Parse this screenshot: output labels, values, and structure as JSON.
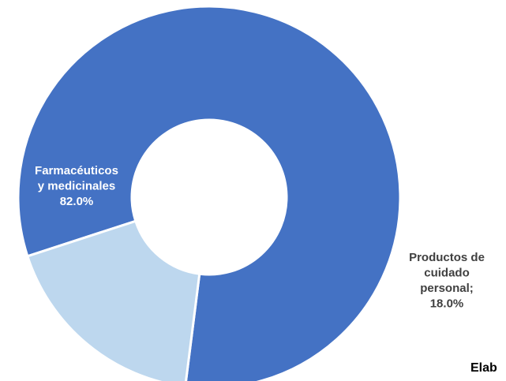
{
  "chart_data": {
    "type": "pie",
    "variant": "donut",
    "slices": [
      {
        "label_lines": [
          "Farmacéuticos",
          "y medicinales",
          "82.0%"
        ],
        "value": 82.0,
        "color": "#4472C4",
        "label_color": "#ffffff"
      },
      {
        "label_lines": [
          "Productos de",
          "cuidado",
          "personal;",
          "18.0%"
        ],
        "value": 18.0,
        "color": "#BDD7EE",
        "label_color": "#404040"
      }
    ],
    "legend": "none"
  },
  "footnote": "Elab"
}
